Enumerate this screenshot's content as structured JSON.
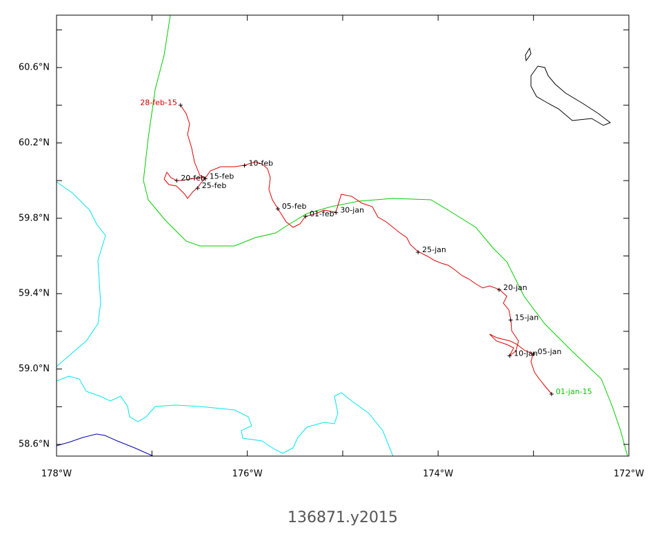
{
  "map": {
    "title": "136871.y2015",
    "xlim": [
      -178,
      -172
    ],
    "ylim": [
      58.538,
      60.878
    ],
    "xticks": [
      {
        "value": -178,
        "label": "178°W"
      },
      {
        "value": -176,
        "label": "176°W"
      },
      {
        "value": -174,
        "label": "174°W"
      },
      {
        "value": -172,
        "label": "172°W"
      }
    ],
    "xminor": [
      -177,
      -175,
      -173
    ],
    "yticks": [
      {
        "value": 58.6,
        "label": "58.6°N"
      },
      {
        "value": 59.0,
        "label": "59.0°N"
      },
      {
        "value": 59.4,
        "label": "59.4°N"
      },
      {
        "value": 59.8,
        "label": "59.8°N"
      },
      {
        "value": 60.2,
        "label": "60.2°N"
      },
      {
        "value": 60.6,
        "label": "60.6°N"
      }
    ],
    "yminor": [
      58.8,
      59.2,
      59.6,
      60.0,
      60.4,
      60.8
    ],
    "annotations": [
      {
        "text": "01-jan-15",
        "lon": -172.81,
        "lat": 58.867,
        "color": "#00cc00"
      },
      {
        "text": "05-jan",
        "lon": -173.0,
        "lat": 59.08,
        "color": "#000000"
      },
      {
        "text": "10-jan",
        "lon": -173.25,
        "lat": 59.07,
        "color": "#000000"
      },
      {
        "text": "15-jan",
        "lon": -173.24,
        "lat": 59.26,
        "color": "#000000"
      },
      {
        "text": "20-jan",
        "lon": -173.36,
        "lat": 59.42,
        "color": "#000000"
      },
      {
        "text": "25-jan",
        "lon": -174.21,
        "lat": 59.62,
        "color": "#000000"
      },
      {
        "text": "30-jan",
        "lon": -175.07,
        "lat": 59.83,
        "color": "#000000"
      },
      {
        "text": "01-feb",
        "lon": -175.39,
        "lat": 59.81,
        "color": "#000000"
      },
      {
        "text": "05-feb",
        "lon": -175.68,
        "lat": 59.85,
        "color": "#000000"
      },
      {
        "text": "10-feb",
        "lon": -176.03,
        "lat": 60.08,
        "color": "#000000"
      },
      {
        "text": "15-feb",
        "lon": -176.44,
        "lat": 60.01,
        "color": "#000000"
      },
      {
        "text": "20-feb",
        "lon": -176.74,
        "lat": 60.0,
        "color": "#000000"
      },
      {
        "text": "25-feb",
        "lon": -176.52,
        "lat": 59.96,
        "color": "#000000"
      },
      {
        "text": "28-feb-15",
        "lon": -176.7,
        "lat": 60.4,
        "color": "#cc0000",
        "anchor": "end"
      }
    ]
  }
}
